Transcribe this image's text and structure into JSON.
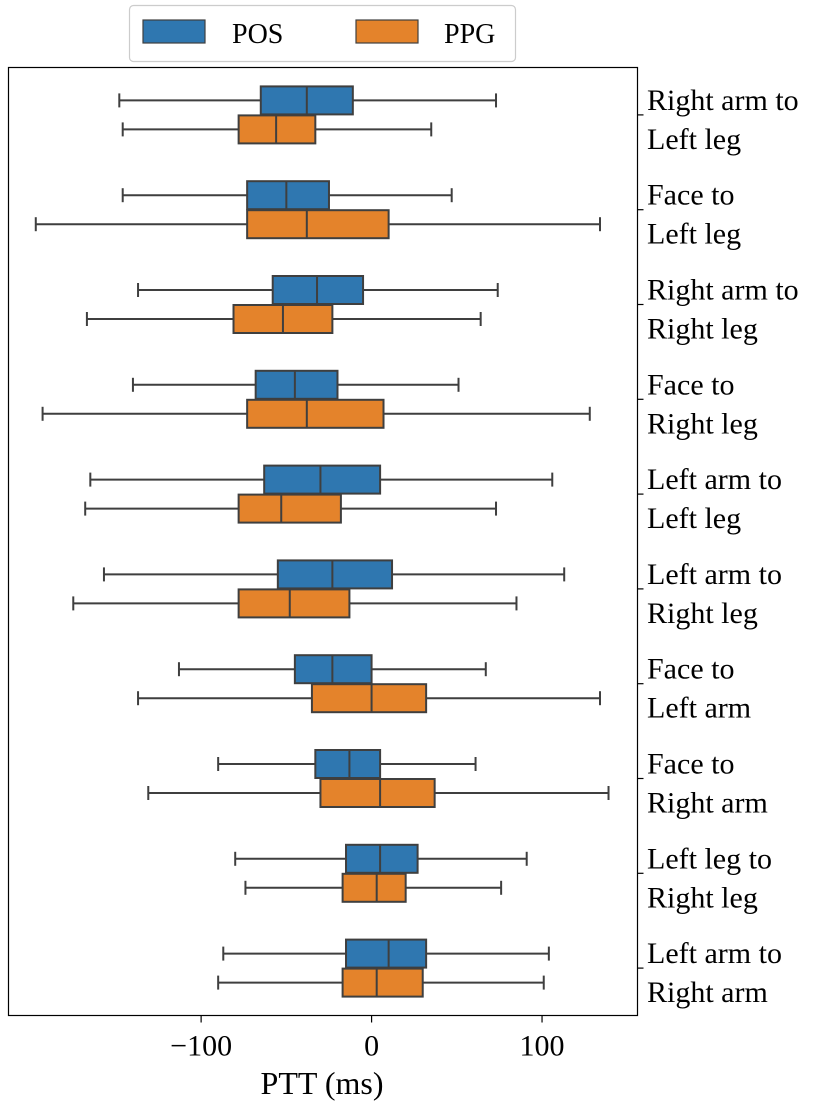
{
  "chart_data": {
    "type": "boxplot",
    "orientation": "horizontal",
    "xlabel": "PTT (ms)",
    "xlim": [
      -213,
      156
    ],
    "xticks": [
      -100,
      0,
      100
    ],
    "xtick_labels": [
      "−100",
      "0",
      "100"
    ],
    "legend_position": "top-center",
    "series": [
      {
        "name": "POS",
        "color": "#2f77b0"
      },
      {
        "name": "PPG",
        "color": "#e4832b"
      }
    ],
    "categories": [
      {
        "label_lines": [
          "Right arm to",
          "Left leg"
        ],
        "POS": {
          "whisker_low": -148,
          "q1": -65,
          "median": -38,
          "q3": -11,
          "whisker_high": 73
        },
        "PPG": {
          "whisker_low": -146,
          "q1": -78,
          "median": -56,
          "q3": -33,
          "whisker_high": 35
        }
      },
      {
        "label_lines": [
          "Face to",
          "Left leg"
        ],
        "POS": {
          "whisker_low": -146,
          "q1": -73,
          "median": -50,
          "q3": -25,
          "whisker_high": 47
        },
        "PPG": {
          "whisker_low": -197,
          "q1": -73,
          "median": -38,
          "q3": 10,
          "whisker_high": 134
        }
      },
      {
        "label_lines": [
          "Right arm to",
          "Right leg"
        ],
        "POS": {
          "whisker_low": -137,
          "q1": -58,
          "median": -32,
          "q3": -5,
          "whisker_high": 74
        },
        "PPG": {
          "whisker_low": -167,
          "q1": -81,
          "median": -52,
          "q3": -23,
          "whisker_high": 64
        }
      },
      {
        "label_lines": [
          "Face to",
          "Right leg"
        ],
        "POS": {
          "whisker_low": -140,
          "q1": -68,
          "median": -45,
          "q3": -20,
          "whisker_high": 51
        },
        "PPG": {
          "whisker_low": -193,
          "q1": -73,
          "median": -38,
          "q3": 7,
          "whisker_high": 128
        }
      },
      {
        "label_lines": [
          "Left arm to",
          "Left leg"
        ],
        "POS": {
          "whisker_low": -165,
          "q1": -63,
          "median": -30,
          "q3": 5,
          "whisker_high": 106
        },
        "PPG": {
          "whisker_low": -168,
          "q1": -78,
          "median": -53,
          "q3": -18,
          "whisker_high": 73
        }
      },
      {
        "label_lines": [
          "Left arm to",
          "Right leg"
        ],
        "POS": {
          "whisker_low": -157,
          "q1": -55,
          "median": -23,
          "q3": 12,
          "whisker_high": 113
        },
        "PPG": {
          "whisker_low": -175,
          "q1": -78,
          "median": -48,
          "q3": -13,
          "whisker_high": 85
        }
      },
      {
        "label_lines": [
          "Face to",
          "Left arm"
        ],
        "POS": {
          "whisker_low": -113,
          "q1": -45,
          "median": -23,
          "q3": 0,
          "whisker_high": 67
        },
        "PPG": {
          "whisker_low": -137,
          "q1": -35,
          "median": 0,
          "q3": 32,
          "whisker_high": 134
        }
      },
      {
        "label_lines": [
          "Face to",
          "Right arm"
        ],
        "POS": {
          "whisker_low": -90,
          "q1": -33,
          "median": -13,
          "q3": 5,
          "whisker_high": 61
        },
        "PPG": {
          "whisker_low": -131,
          "q1": -30,
          "median": 5,
          "q3": 37,
          "whisker_high": 139
        }
      },
      {
        "label_lines": [
          "Left leg to",
          "Right leg"
        ],
        "POS": {
          "whisker_low": -80,
          "q1": -15,
          "median": 5,
          "q3": 27,
          "whisker_high": 91
        },
        "PPG": {
          "whisker_low": -74,
          "q1": -17,
          "median": 3,
          "q3": 20,
          "whisker_high": 76
        }
      },
      {
        "label_lines": [
          "Left arm to",
          "Right arm"
        ],
        "POS": {
          "whisker_low": -87,
          "q1": -15,
          "median": 10,
          "q3": 32,
          "whisker_high": 104
        },
        "PPG": {
          "whisker_low": -90,
          "q1": -17,
          "median": 3,
          "q3": 30,
          "whisker_high": 101
        }
      }
    ]
  }
}
